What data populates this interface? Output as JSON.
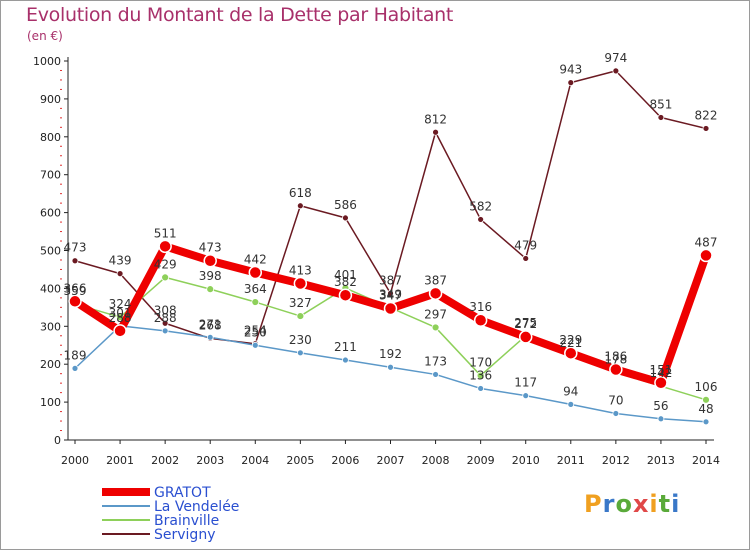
{
  "header": {
    "title": "Evolution du Montant de la Dette par Habitant",
    "unit": "(en €)"
  },
  "logo": {
    "text": "Proxiti",
    "letters": [
      "P",
      "r",
      "o",
      "x",
      "i",
      "t",
      "i"
    ],
    "colors": [
      "#f0a020",
      "#3a78c8",
      "#5aaa3a",
      "#e04848",
      "#f0a020",
      "#5aaa3a",
      "#3a78c8"
    ]
  },
  "chart_data": {
    "type": "line",
    "title": "Evolution du Montant de la Dette par Habitant",
    "ylabel": "(en €)",
    "xlabel": "",
    "x": [
      "2000",
      "2001",
      "2002",
      "2003",
      "2004",
      "2005",
      "2006",
      "2007",
      "2008",
      "2009",
      "2010",
      "2011",
      "2012",
      "2013",
      "2014"
    ],
    "ylim": [
      0,
      1000
    ],
    "yticks": [
      0,
      100,
      200,
      300,
      400,
      500,
      600,
      700,
      800,
      900,
      1000
    ],
    "grid": false,
    "legend": "bottom-left",
    "series": [
      {
        "name": "Servigny",
        "color": "#6b1a22",
        "values": [
          473,
          439,
          308,
          268,
          254,
          618,
          586,
          387,
          812,
          582,
          479,
          943,
          974,
          851,
          822
        ]
      },
      {
        "name": "La Vendelée",
        "color": "#5b98c8",
        "values": [
          189,
          301,
          288,
          271,
          250,
          230,
          211,
          192,
          173,
          136,
          117,
          94,
          70,
          56,
          48
        ]
      },
      {
        "name": "Brainville",
        "color": "#8ed05a",
        "values": [
          359,
          324,
          429,
          398,
          364,
          327,
          401,
          349,
          297,
          170,
          275,
          221,
          178,
          142,
          106
        ]
      },
      {
        "name": "GRATOT",
        "color": "#ee0000",
        "values": [
          366,
          288,
          511,
          473,
          442,
          413,
          382,
          347,
          387,
          316,
          272,
          229,
          186,
          151,
          487
        ]
      }
    ],
    "data_labels": {
      "Servigny": [
        "473",
        "439",
        "308",
        "268",
        "254",
        "618",
        "586",
        "387",
        "812",
        "582",
        "479",
        "943",
        "974",
        "851",
        "822"
      ],
      "La Vendelée": [
        "189",
        "301",
        "288",
        "271",
        "250",
        "230",
        "211",
        "192",
        "173",
        "136",
        "117",
        "94",
        "70",
        "56",
        "48"
      ],
      "Brainville": [
        "359",
        "324",
        "429",
        "398",
        "364",
        "327",
        "401",
        "349",
        "297",
        "170",
        "275",
        "221",
        "178",
        "142",
        "106"
      ],
      "GRATOT": [
        "366",
        "288",
        "511",
        "473",
        "442",
        "413",
        "382",
        "347",
        "387",
        "316",
        "272",
        "229",
        "186",
        "151",
        "487"
      ]
    }
  }
}
